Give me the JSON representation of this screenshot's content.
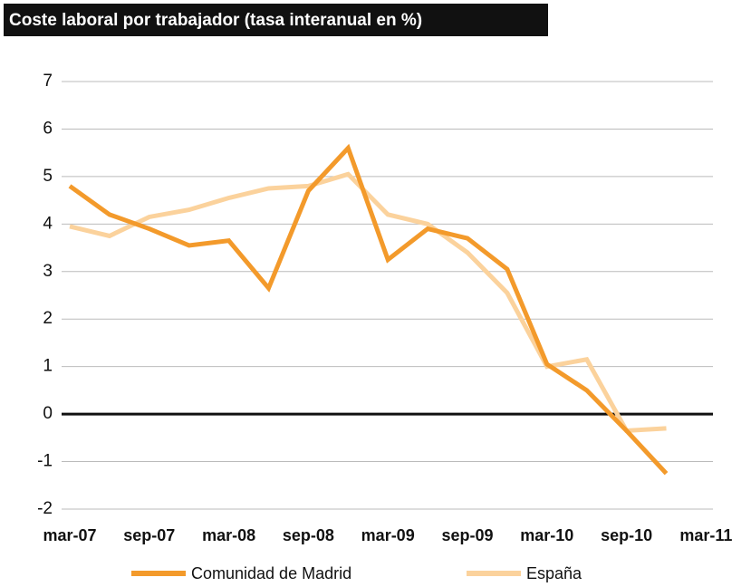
{
  "chart_data": {
    "type": "line",
    "title": "Coste laboral por trabajador (tasa interanual en %)",
    "categories": [
      "mar-07",
      null,
      "sep-07",
      null,
      "mar-08",
      null,
      "sep-08",
      null,
      "mar-09",
      null,
      "sep-09",
      null,
      "mar-10",
      null,
      "sep-10",
      null,
      "mar-11"
    ],
    "series": [
      {
        "name": "Comunidad de Madrid",
        "color": "#f39a2b",
        "values": [
          4.8,
          4.2,
          3.9,
          3.55,
          3.65,
          2.65,
          4.7,
          5.6,
          3.25,
          3.9,
          3.7,
          3.05,
          1.05,
          0.5,
          -0.35,
          -1.25,
          null
        ]
      },
      {
        "name": "España",
        "color": "#fbd29c",
        "values": [
          3.95,
          3.75,
          4.15,
          4.3,
          4.55,
          4.75,
          4.8,
          5.05,
          4.2,
          4.0,
          3.4,
          2.55,
          1.0,
          1.15,
          -0.35,
          -0.3,
          null
        ]
      }
    ],
    "ylim": [
      -2,
      7
    ],
    "yticks": [
      -2,
      -1,
      0,
      1,
      2,
      3,
      4,
      5,
      6,
      7
    ],
    "grid": true
  }
}
